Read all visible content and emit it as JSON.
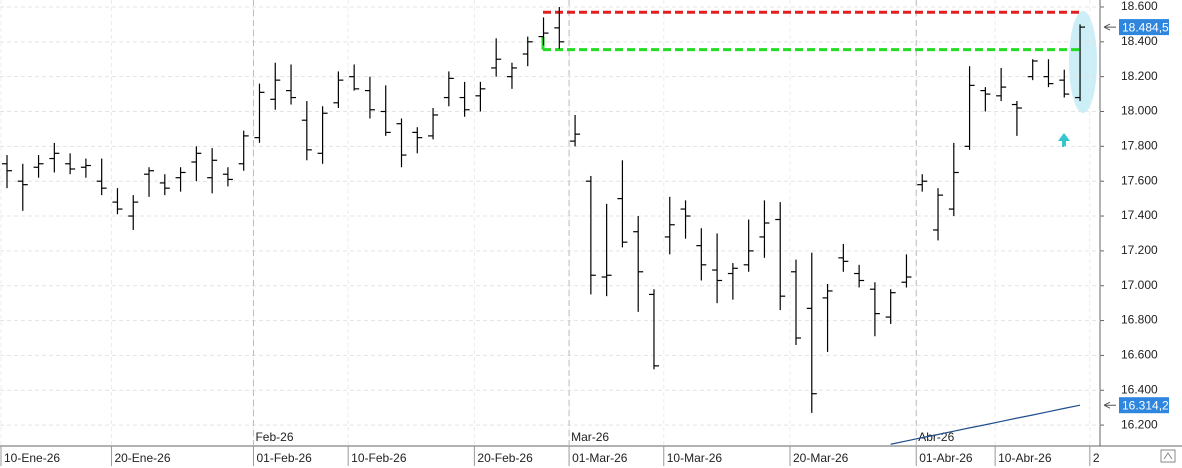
{
  "chart_data": {
    "type": "ohlc",
    "categories": [
      "10-Ene-26",
      null,
      null,
      null,
      null,
      null,
      null,
      "20-Ene-26",
      null,
      null,
      null,
      null,
      null,
      null,
      null,
      null,
      "01-Feb-26",
      null,
      null,
      null,
      null,
      null,
      "10-Feb-26",
      null,
      null,
      null,
      null,
      null,
      null,
      null,
      "20-Feb-26",
      null,
      null,
      null,
      null,
      null,
      "01-Mar-26",
      null,
      null,
      null,
      null,
      null,
      "10-Mar-26",
      null,
      null,
      null,
      null,
      null,
      null,
      null,
      "20-Mar-26",
      null,
      null,
      null,
      null,
      null,
      null,
      null,
      "01-Abr-26",
      null,
      null,
      null,
      null,
      "10-Abr-26",
      null,
      null,
      null,
      null,
      null,
      "2"
    ],
    "open": [
      17700,
      17600,
      17680,
      17730,
      17700,
      17680,
      17600,
      17480,
      17400,
      17640,
      17590,
      17620,
      17710,
      17620,
      17640,
      17700,
      17850,
      18070,
      18120,
      17950,
      17760,
      18050,
      18200,
      18120,
      18000,
      17930,
      17880,
      17860,
      18080,
      18080,
      18090,
      18250,
      18200,
      18330,
      18430,
      18480,
      17830,
      17600,
      17050,
      17500,
      17310,
      16950,
      17280,
      17440,
      17230,
      17090,
      17070,
      17120,
      17280,
      17380,
      17080,
      16870,
      16930,
      17160,
      17070,
      16980,
      16820,
      17020,
      17580,
      17320,
      17440,
      17800,
      18120,
      18090,
      18040,
      18200,
      18200,
      18180,
      18080,
      null
    ],
    "high": [
      17750,
      17700,
      17750,
      17820,
      17760,
      17730,
      17730,
      17560,
      17520,
      17680,
      17640,
      17680,
      17800,
      17790,
      17680,
      17890,
      18160,
      18280,
      18270,
      18060,
      18030,
      18230,
      18270,
      18200,
      18150,
      17960,
      17910,
      18020,
      18230,
      18170,
      18170,
      18420,
      18280,
      18430,
      18540,
      18600,
      17980,
      17630,
      17470,
      17720,
      17400,
      16980,
      17510,
      17490,
      17330,
      17300,
      17130,
      17380,
      17490,
      17480,
      17150,
      17190,
      17010,
      17240,
      17120,
      17020,
      16980,
      17180,
      17640,
      17560,
      17820,
      18260,
      18140,
      18250,
      18060,
      18300,
      18300,
      18240,
      18500,
      null
    ],
    "low": [
      17560,
      17430,
      17620,
      17650,
      17640,
      17620,
      17520,
      17410,
      17320,
      17510,
      17520,
      17540,
      17600,
      17530,
      17570,
      17660,
      17820,
      18010,
      18040,
      17720,
      17700,
      18020,
      18120,
      17960,
      17860,
      17680,
      17760,
      17840,
      18030,
      17970,
      18000,
      18200,
      18130,
      18260,
      18380,
      18360,
      17800,
      16950,
      16940,
      17220,
      16850,
      16520,
      17180,
      17270,
      17030,
      16900,
      16920,
      17080,
      17160,
      16860,
      16660,
      16270,
      16620,
      17080,
      16990,
      16710,
      16780,
      16990,
      17540,
      17260,
      17400,
      17780,
      18000,
      18060,
      17860,
      18180,
      18140,
      18080,
      18060,
      null
    ],
    "close": [
      17660,
      17580,
      17700,
      17760,
      17670,
      17690,
      17560,
      17440,
      17480,
      17660,
      17560,
      17650,
      17760,
      17720,
      17610,
      17860,
      18110,
      18180,
      18080,
      17780,
      17990,
      18180,
      18130,
      18010,
      17880,
      17750,
      17850,
      17980,
      18190,
      18010,
      18130,
      18300,
      18250,
      18400,
      18450,
      18400,
      17870,
      17060,
      17060,
      17250,
      17080,
      16540,
      17350,
      17400,
      17120,
      17030,
      17100,
      17200,
      17360,
      16940,
      16700,
      16380,
      16970,
      17140,
      17030,
      16840,
      16960,
      17050,
      17600,
      17520,
      17650,
      18150,
      18100,
      18140,
      18020,
      18290,
      18160,
      18100,
      18484.5,
      null
    ],
    "bar_color": "#000000",
    "indicator": {
      "color": "#1f4e8c",
      "values": [
        null,
        null,
        null,
        null,
        null,
        null,
        null,
        null,
        null,
        null,
        null,
        null,
        null,
        null,
        null,
        null,
        null,
        null,
        null,
        null,
        null,
        null,
        null,
        null,
        null,
        null,
        null,
        null,
        null,
        null,
        null,
        null,
        null,
        null,
        null,
        null,
        null,
        null,
        null,
        null,
        null,
        null,
        null,
        null,
        null,
        null,
        null,
        null,
        null,
        null,
        null,
        null,
        null,
        null,
        null,
        null,
        16090,
        16109,
        16128,
        16146,
        16165,
        16184,
        16202,
        16221,
        16240,
        16258,
        16277,
        16296,
        16314.2,
        null
      ]
    },
    "levels": [
      {
        "value": 18570,
        "color": "#e02020"
      },
      {
        "value": 18355,
        "color": "#22dd22"
      }
    ],
    "price_tags": [
      {
        "value": 18484.5,
        "label": "18.484,5",
        "color": "#2e86de"
      },
      {
        "value": 16314.2,
        "label": "16.314,2",
        "color": "#2e86de"
      }
    ],
    "months": [
      {
        "label": "Feb-26",
        "at": "01-Feb-26"
      },
      {
        "label": "Mar-26",
        "at": "01-Mar-26"
      },
      {
        "label": "Abr-26",
        "at": "01-Abr-26"
      }
    ],
    "ylim": [
      16080,
      18640
    ],
    "yticks": [
      {
        "value": 16200,
        "label": "16.200"
      },
      {
        "value": 16400,
        "label": "16.400"
      },
      {
        "value": 16600,
        "label": "16.600"
      },
      {
        "value": 16800,
        "label": "16.800"
      },
      {
        "value": 17000,
        "label": "17.000"
      },
      {
        "value": 17200,
        "label": "17.200"
      },
      {
        "value": 17400,
        "label": "17.400"
      },
      {
        "value": 17600,
        "label": "17.600"
      },
      {
        "value": 17800,
        "label": "17.800"
      },
      {
        "value": 18000,
        "label": "18.000"
      },
      {
        "value": 18200,
        "label": "18.200"
      },
      {
        "value": 18400,
        "label": "18.400"
      },
      {
        "value": 18600,
        "label": "18.600"
      }
    ],
    "grid": true
  }
}
